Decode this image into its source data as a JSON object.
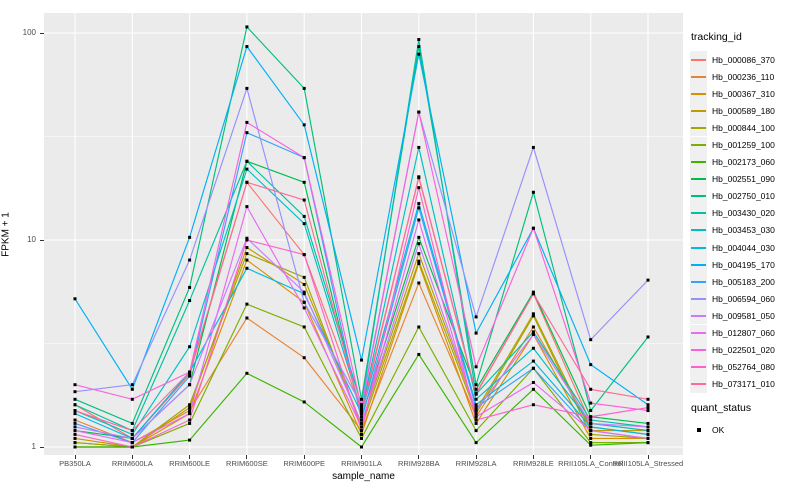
{
  "figure": {
    "y_axis_title": "FPKM + 1",
    "x_axis_title": "sample_name",
    "tracking_legend_title": "tracking_id",
    "quant_legend_title": "quant_status",
    "quant_items": [
      {
        "label": "OK",
        "marker": "black-filled-square"
      }
    ]
  },
  "chart_data": {
    "type": "line",
    "title": "",
    "xlabel": "sample_name",
    "ylabel": "FPKM + 1",
    "y_scale": "log10",
    "ylim": [
      0.92,
      125
    ],
    "y_major_ticks": [
      1,
      10,
      100
    ],
    "y_tick_labels": [
      "1",
      "10",
      "100"
    ],
    "y_minor_ticks": [
      3.162,
      31.62
    ],
    "grid": "on",
    "legend_position": "right",
    "panel_background": "#EBEBEB",
    "grid_color": "#FFFFFF",
    "point_color": "#000000",
    "point_shape": "square",
    "categories": [
      "PB350LA",
      "RRIM600LA",
      "RRIM600LE",
      "RRIM600SE",
      "RRIM600PE",
      "RRIM901LA",
      "RRIM928BA",
      "RRIM928LA",
      "RRIM928LE",
      "RRII105LA_Control",
      "RRII105LA_Stressed"
    ],
    "series": [
      {
        "name": "Hb_000086_370",
        "color": "#F8766D",
        "values": [
          1.6,
          1.1,
          2.25,
          19,
          8.5,
          1.5,
          20,
          1.8,
          5.5,
          1.3,
          1.2
        ]
      },
      {
        "name": "Hb_000236_110",
        "color": "#EA8331",
        "values": [
          1.35,
          1.05,
          1.5,
          4.2,
          2.7,
          1.2,
          6.2,
          1.4,
          3.8,
          1.25,
          1.15
        ]
      },
      {
        "name": "Hb_000367_310",
        "color": "#D89000",
        "values": [
          1.05,
          1.0,
          1.45,
          8.0,
          5.0,
          1.15,
          7.7,
          1.3,
          3.5,
          1.1,
          1.1
        ]
      },
      {
        "name": "Hb_000589_180",
        "color": "#C09B00",
        "values": [
          1.1,
          1.0,
          1.55,
          9.2,
          6.1,
          1.3,
          8.6,
          1.5,
          4.4,
          1.2,
          1.2
        ]
      },
      {
        "name": "Hb_000844_100",
        "color": "#A3A500",
        "values": [
          1.05,
          1.0,
          1.6,
          8.6,
          6.6,
          1.25,
          7.9,
          1.45,
          4.3,
          1.15,
          1.1
        ]
      },
      {
        "name": "Hb_001259_100",
        "color": "#7CAE00",
        "values": [
          1.0,
          1.0,
          1.3,
          4.9,
          3.8,
          1.1,
          3.8,
          1.2,
          2.4,
          1.05,
          1.05
        ]
      },
      {
        "name": "Hb_002173_060",
        "color": "#39B600",
        "values": [
          1.0,
          1.0,
          1.08,
          2.27,
          1.65,
          1.0,
          2.8,
          1.05,
          1.9,
          1.02,
          1.05
        ]
      },
      {
        "name": "Hb_002551_090",
        "color": "#00BB4E",
        "values": [
          1.2,
          1.1,
          2.0,
          24,
          19,
          1.4,
          10.3,
          1.9,
          5.6,
          1.4,
          1.3
        ]
      },
      {
        "name": "Hb_002750_010",
        "color": "#00BF7D",
        "values": [
          1.7,
          1.3,
          5.9,
          107,
          54,
          1.7,
          86,
          2.0,
          17,
          1.5,
          3.4
        ]
      },
      {
        "name": "Hb_003430_020",
        "color": "#00C1A3",
        "values": [
          1.6,
          1.2,
          5.1,
          24,
          13,
          1.6,
          93,
          1.8,
          3.6,
          1.35,
          1.25
        ]
      },
      {
        "name": "Hb_003453_030",
        "color": "#00BFC4",
        "values": [
          1.5,
          1.15,
          3.05,
          22,
          12,
          1.5,
          28,
          1.7,
          3.0,
          1.3,
          1.2
        ]
      },
      {
        "name": "Hb_004044_030",
        "color": "#00BAE0",
        "values": [
          1.45,
          1.1,
          2.3,
          7.3,
          5.5,
          1.45,
          15,
          1.6,
          2.6,
          1.25,
          1.15
        ]
      },
      {
        "name": "Hb_004195_170",
        "color": "#00B0F6",
        "values": [
          5.2,
          1.9,
          10.3,
          86,
          36,
          2.63,
          79,
          3.55,
          11.4,
          2.5,
          1.6
        ]
      },
      {
        "name": "Hb_005183_200",
        "color": "#35A2FF",
        "values": [
          1.3,
          1.05,
          2.2,
          33,
          25,
          1.35,
          14.3,
          1.55,
          2.4,
          1.2,
          1.1
        ]
      },
      {
        "name": "Hb_006594_060",
        "color": "#9590FF",
        "values": [
          1.85,
          2.0,
          8.0,
          54,
          5.0,
          1.6,
          41.5,
          4.25,
          28,
          3.3,
          6.4
        ]
      },
      {
        "name": "Hb_009581_050",
        "color": "#C77CFF",
        "values": [
          1.25,
          1.1,
          2.0,
          10.2,
          5.6,
          1.3,
          9.6,
          1.5,
          3.5,
          1.3,
          1.25
        ]
      },
      {
        "name": "Hb_012807_060",
        "color": "#E76BF3",
        "values": [
          1.2,
          1.05,
          1.45,
          14.5,
          4.7,
          1.25,
          12.5,
          1.4,
          2.05,
          1.2,
          1.1
        ]
      },
      {
        "name": "Hb_022501_020",
        "color": "#FA62DB",
        "values": [
          2.0,
          1.7,
          2.3,
          37,
          25,
          1.55,
          41.5,
          2.44,
          11.4,
          1.63,
          1.5
        ]
      },
      {
        "name": "Hb_052764_080",
        "color": "#FF61CC",
        "values": [
          1.15,
          1.0,
          1.35,
          10,
          8.5,
          1.2,
          17.9,
          1.35,
          1.6,
          1.4,
          1.55
        ]
      },
      {
        "name": "Hb_073171_010",
        "color": "#FF6A98",
        "values": [
          1.5,
          1.2,
          2.3,
          19,
          15.6,
          1.45,
          20.2,
          1.82,
          5.5,
          1.9,
          1.7
        ]
      }
    ]
  }
}
